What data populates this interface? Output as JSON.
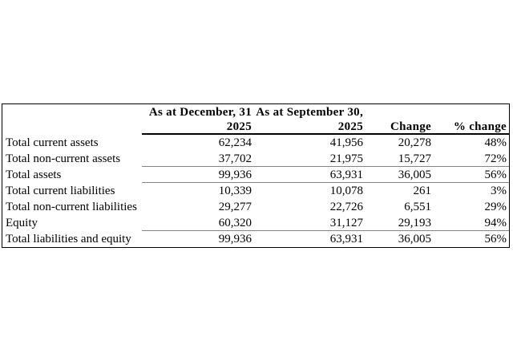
{
  "table": {
    "header": {
      "period1_title": "As at December, 31",
      "period1_year": "2025",
      "period2_title": "As at September 30,",
      "period2_year": "2025",
      "change_label": "Change",
      "pct_change_label": "% change"
    },
    "rows": [
      {
        "label": "Total current assets",
        "period1": "62,234",
        "period2": "41,956",
        "change": "20,278",
        "pct_change": "48%"
      },
      {
        "label": "Total non-current assets",
        "period1": "37,702",
        "period2": "21,975",
        "change": "15,727",
        "pct_change": "72%"
      },
      {
        "label": "Total assets",
        "period1": "99,936",
        "period2": "63,931",
        "change": "36,005",
        "pct_change": "56%"
      },
      {
        "label": "Total current liabilities",
        "period1": "10,339",
        "period2": "10,078",
        "change": "261",
        "pct_change": "3%"
      },
      {
        "label": "Total non-current liabilities",
        "period1": "29,277",
        "period2": "22,726",
        "change": "6,551",
        "pct_change": "29%"
      },
      {
        "label": "Equity",
        "period1": "60,320",
        "period2": "31,127",
        "change": "29,193",
        "pct_change": "94%"
      },
      {
        "label": "Total liabilities and equity",
        "period1": "99,936",
        "period2": "63,931",
        "change": "36,005",
        "pct_change": "56%"
      }
    ]
  }
}
